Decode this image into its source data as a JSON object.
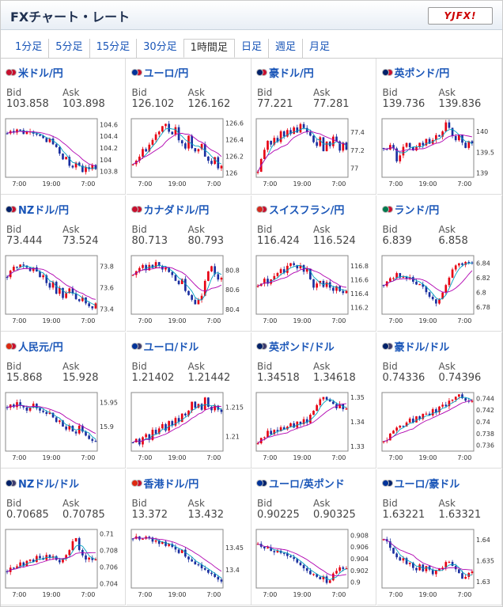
{
  "header": {
    "title": "FXチャート・レート",
    "logo": "YJFX!"
  },
  "tabs": [
    {
      "label": "1分足",
      "active": false
    },
    {
      "label": "5分足",
      "active": false
    },
    {
      "label": "15分足",
      "active": false
    },
    {
      "label": "30分足",
      "active": false
    },
    {
      "label": "1時間足",
      "active": true
    },
    {
      "label": "日足",
      "active": false
    },
    {
      "label": "週足",
      "active": false
    },
    {
      "label": "月足",
      "active": false
    }
  ],
  "labels": {
    "bid": "Bid",
    "ask": "Ask"
  },
  "x_ticks": [
    "7:00",
    "19:00",
    "7:00"
  ],
  "colors": {
    "up": "#e60012",
    "down": "#1a2fa0",
    "ma1": "#00a0c0",
    "ma2": "#b000b0"
  },
  "pairs": [
    {
      "name": "米ドル/円",
      "flags": [
        "#c8102e",
        "#c8102e"
      ],
      "bid": "103.858",
      "ask": "103.898",
      "yticks": [
        "104.6",
        "104.4",
        "104.2",
        "104",
        "103.8"
      ],
      "ylim": [
        103.7,
        104.7
      ],
      "trend": [
        104.45,
        104.5,
        104.48,
        104.52,
        104.5,
        104.45,
        104.47,
        104.5,
        104.46,
        104.44,
        104.4,
        104.35,
        104.3,
        104.35,
        104.28,
        104.2,
        104.1,
        104.0,
        104.05,
        103.9,
        103.85,
        103.95,
        103.9,
        103.8,
        103.88,
        103.82,
        103.9,
        103.86
      ]
    },
    {
      "name": "ユーロ/円",
      "flags": [
        "#003399",
        "#c8102e"
      ],
      "bid": "126.102",
      "ask": "126.162",
      "yticks": [
        "126.6",
        "126.4",
        "126.2",
        "126"
      ],
      "ylim": [
        125.95,
        126.65
      ],
      "trend": [
        126.1,
        126.15,
        126.2,
        126.3,
        126.25,
        126.35,
        126.4,
        126.45,
        126.5,
        126.55,
        126.6,
        126.5,
        126.45,
        126.55,
        126.4,
        126.35,
        126.3,
        126.45,
        126.3,
        126.25,
        126.3,
        126.35,
        126.2,
        126.15,
        126.1,
        126.2,
        126.05,
        126.1
      ]
    },
    {
      "name": "豪ドル/円",
      "flags": [
        "#012169",
        "#c8102e"
      ],
      "bid": "77.221",
      "ask": "77.281",
      "yticks": [
        "77.4",
        "77.2",
        "77"
      ],
      "ylim": [
        76.9,
        77.55
      ],
      "trend": [
        76.95,
        77.1,
        77.2,
        77.3,
        77.25,
        77.35,
        77.3,
        77.4,
        77.35,
        77.42,
        77.38,
        77.45,
        77.4,
        77.5,
        77.45,
        77.4,
        77.35,
        77.3,
        77.25,
        77.35,
        77.2,
        77.3,
        77.25,
        77.35,
        77.3,
        77.2,
        77.28,
        77.22
      ]
    },
    {
      "name": "英ポンド/円",
      "flags": [
        "#012169",
        "#c8102e"
      ],
      "bid": "139.736",
      "ask": "139.836",
      "yticks": [
        "140",
        "139.5",
        "139"
      ],
      "ylim": [
        138.9,
        140.3
      ],
      "trend": [
        139.6,
        139.55,
        139.7,
        139.6,
        139.3,
        139.4,
        139.6,
        139.7,
        139.6,
        139.55,
        139.6,
        139.7,
        139.65,
        139.8,
        139.7,
        139.8,
        139.9,
        139.85,
        140.0,
        140.2,
        140.1,
        139.9,
        139.8,
        139.9,
        139.7,
        139.6,
        139.75,
        139.74
      ]
    },
    {
      "name": "NZドル/円",
      "flags": [
        "#012169",
        "#c8102e"
      ],
      "bid": "73.444",
      "ask": "73.524",
      "yticks": [
        "73.8",
        "73.6",
        "73.4"
      ],
      "ylim": [
        73.35,
        73.9
      ],
      "trend": [
        73.7,
        73.75,
        73.8,
        73.78,
        73.82,
        73.8,
        73.78,
        73.75,
        73.8,
        73.76,
        73.7,
        73.72,
        73.65,
        73.6,
        73.65,
        73.55,
        73.6,
        73.5,
        73.55,
        73.6,
        73.55,
        73.5,
        73.48,
        73.5,
        73.45,
        73.42,
        73.4,
        73.44
      ]
    },
    {
      "name": "カナダドル/円",
      "flags": [
        "#c8102e",
        "#c8102e"
      ],
      "bid": "80.713",
      "ask": "80.793",
      "yticks": [
        "80.8",
        "80.6",
        "80.4"
      ],
      "ylim": [
        80.35,
        80.95
      ],
      "trend": [
        80.75,
        80.8,
        80.82,
        80.85,
        80.8,
        80.85,
        80.82,
        80.88,
        80.85,
        80.8,
        80.82,
        80.78,
        80.75,
        80.7,
        80.65,
        80.7,
        80.6,
        80.55,
        80.5,
        80.45,
        80.5,
        80.55,
        80.7,
        80.8,
        80.85,
        80.75,
        80.7,
        80.71
      ]
    },
    {
      "name": "スイスフラン/円",
      "flags": [
        "#d52b1e",
        "#c8102e"
      ],
      "bid": "116.424",
      "ask": "116.524",
      "yticks": [
        "116.8",
        "116.6",
        "116.4",
        "116.2"
      ],
      "ylim": [
        116.1,
        116.95
      ],
      "trend": [
        116.5,
        116.55,
        116.6,
        116.55,
        116.6,
        116.65,
        116.7,
        116.75,
        116.7,
        116.8,
        116.85,
        116.8,
        116.75,
        116.8,
        116.7,
        116.75,
        116.6,
        116.5,
        116.55,
        116.6,
        116.5,
        116.55,
        116.5,
        116.45,
        116.5,
        116.45,
        116.4,
        116.42
      ]
    },
    {
      "name": "ランド/円",
      "flags": [
        "#007a4d",
        "#c8102e"
      ],
      "bid": "6.839",
      "ask": "6.858",
      "yticks": [
        "6.84",
        "6.82",
        "6.8",
        "6.78"
      ],
      "ylim": [
        6.77,
        6.85
      ],
      "trend": [
        6.81,
        6.815,
        6.82,
        6.818,
        6.825,
        6.82,
        6.822,
        6.818,
        6.82,
        6.815,
        6.81,
        6.812,
        6.808,
        6.8,
        6.795,
        6.79,
        6.785,
        6.79,
        6.8,
        6.81,
        6.82,
        6.83,
        6.835,
        6.84,
        6.838,
        6.842,
        6.84,
        6.839
      ]
    },
    {
      "name": "人民元/円",
      "flags": [
        "#de2910",
        "#c8102e"
      ],
      "bid": "15.868",
      "ask": "15.928",
      "yticks": [
        "15.95",
        "15.9"
      ],
      "ylim": [
        15.85,
        15.97
      ],
      "trend": [
        15.94,
        15.945,
        15.94,
        15.95,
        15.945,
        15.94,
        15.935,
        15.94,
        15.945,
        15.94,
        15.935,
        15.93,
        15.925,
        15.93,
        15.92,
        15.91,
        15.915,
        15.9,
        15.895,
        15.9,
        15.89,
        15.885,
        15.9,
        15.89,
        15.88,
        15.875,
        15.87,
        15.868
      ]
    },
    {
      "name": "ユーロ/ドル",
      "flags": [
        "#003399",
        "#3c3b6e"
      ],
      "bid": "1.21402",
      "ask": "1.21442",
      "yticks": [
        "1.215",
        "1.21"
      ],
      "ylim": [
        1.2075,
        1.2175
      ],
      "trend": [
        1.209,
        1.2095,
        1.2085,
        1.21,
        1.2105,
        1.2095,
        1.211,
        1.2105,
        1.2115,
        1.212,
        1.211,
        1.2125,
        1.212,
        1.213,
        1.2125,
        1.214,
        1.2135,
        1.2145,
        1.216,
        1.215,
        1.2155,
        1.2145,
        1.2165,
        1.215,
        1.2145,
        1.2152,
        1.2145,
        1.214
      ]
    },
    {
      "name": "英ポンド/ドル",
      "flags": [
        "#012169",
        "#3c3b6e"
      ],
      "bid": "1.34518",
      "ask": "1.34618",
      "yticks": [
        "1.35",
        "1.34",
        "1.33"
      ],
      "ylim": [
        1.328,
        1.352
      ],
      "trend": [
        1.331,
        1.333,
        1.334,
        1.336,
        1.335,
        1.337,
        1.336,
        1.338,
        1.337,
        1.338,
        1.339,
        1.338,
        1.34,
        1.339,
        1.341,
        1.34,
        1.343,
        1.345,
        1.347,
        1.349,
        1.35,
        1.349,
        1.348,
        1.347,
        1.346,
        1.347,
        1.345,
        1.345
      ]
    },
    {
      "name": "豪ドル/ドル",
      "flags": [
        "#012169",
        "#3c3b6e"
      ],
      "bid": "0.74336",
      "ask": "0.74396",
      "yticks": [
        "0.744",
        "0.742",
        "0.74",
        "0.738",
        "0.736"
      ],
      "ylim": [
        0.735,
        0.745
      ],
      "trend": [
        0.7365,
        0.737,
        0.738,
        0.7385,
        0.739,
        0.7395,
        0.7392,
        0.74,
        0.7405,
        0.74,
        0.741,
        0.7405,
        0.7412,
        0.7415,
        0.741,
        0.742,
        0.7418,
        0.7425,
        0.743,
        0.7428,
        0.7435,
        0.7438,
        0.7442,
        0.7445,
        0.744,
        0.7438,
        0.7435,
        0.7434
      ]
    },
    {
      "name": "NZドル/ドル",
      "flags": [
        "#012169",
        "#3c3b6e"
      ],
      "bid": "0.70685",
      "ask": "0.70785",
      "yticks": [
        "0.71",
        "0.708",
        "0.706",
        "0.704"
      ],
      "ylim": [
        0.7035,
        0.7105
      ],
      "trend": [
        0.7055,
        0.706,
        0.7058,
        0.7062,
        0.7065,
        0.706,
        0.7068,
        0.707,
        0.7065,
        0.7072,
        0.707,
        0.7068,
        0.7075,
        0.707,
        0.7072,
        0.7068,
        0.7065,
        0.707,
        0.7075,
        0.708,
        0.709,
        0.7095,
        0.708,
        0.7075,
        0.707,
        0.7072,
        0.7068,
        0.7068
      ]
    },
    {
      "name": "香港ドル/円",
      "flags": [
        "#de2910",
        "#c8102e"
      ],
      "bid": "13.372",
      "ask": "13.432",
      "yticks": [
        "13.45",
        "13.4"
      ],
      "ylim": [
        13.36,
        13.49
      ],
      "trend": [
        13.47,
        13.475,
        13.47,
        13.468,
        13.472,
        13.47,
        13.465,
        13.468,
        13.46,
        13.462,
        13.455,
        13.46,
        13.45,
        13.445,
        13.44,
        13.445,
        13.43,
        13.425,
        13.42,
        13.415,
        13.41,
        13.405,
        13.4,
        13.395,
        13.39,
        13.385,
        13.378,
        13.372
      ]
    },
    {
      "name": "ユーロ/英ポンド",
      "flags": [
        "#003399",
        "#012169"
      ],
      "bid": "0.90225",
      "ask": "0.90325",
      "yticks": [
        "0.908",
        "0.906",
        "0.904",
        "0.902",
        "0.9"
      ],
      "ylim": [
        0.899,
        0.909
      ],
      "trend": [
        0.9065,
        0.906,
        0.9058,
        0.906,
        0.9055,
        0.905,
        0.9052,
        0.9048,
        0.905,
        0.9045,
        0.9042,
        0.904,
        0.9035,
        0.903,
        0.9025,
        0.902,
        0.9015,
        0.9012,
        0.901,
        0.9005,
        0.9008,
        0.9,
        0.9003,
        0.9015,
        0.902,
        0.9025,
        0.9022,
        0.9022
      ]
    },
    {
      "name": "ユーロ/豪ドル",
      "flags": [
        "#003399",
        "#012169"
      ],
      "bid": "1.63221",
      "ask": "1.63321",
      "yticks": [
        "1.64",
        "1.635",
        "1.63"
      ],
      "ylim": [
        1.6285,
        1.6425
      ],
      "trend": [
        1.64,
        1.6395,
        1.638,
        1.637,
        1.636,
        1.635,
        1.6355,
        1.634,
        1.6345,
        1.6335,
        1.633,
        1.634,
        1.6325,
        1.6335,
        1.633,
        1.632,
        1.6325,
        1.633,
        1.6335,
        1.6345,
        1.635,
        1.634,
        1.633,
        1.632,
        1.6305,
        1.631,
        1.632,
        1.6322
      ]
    }
  ]
}
